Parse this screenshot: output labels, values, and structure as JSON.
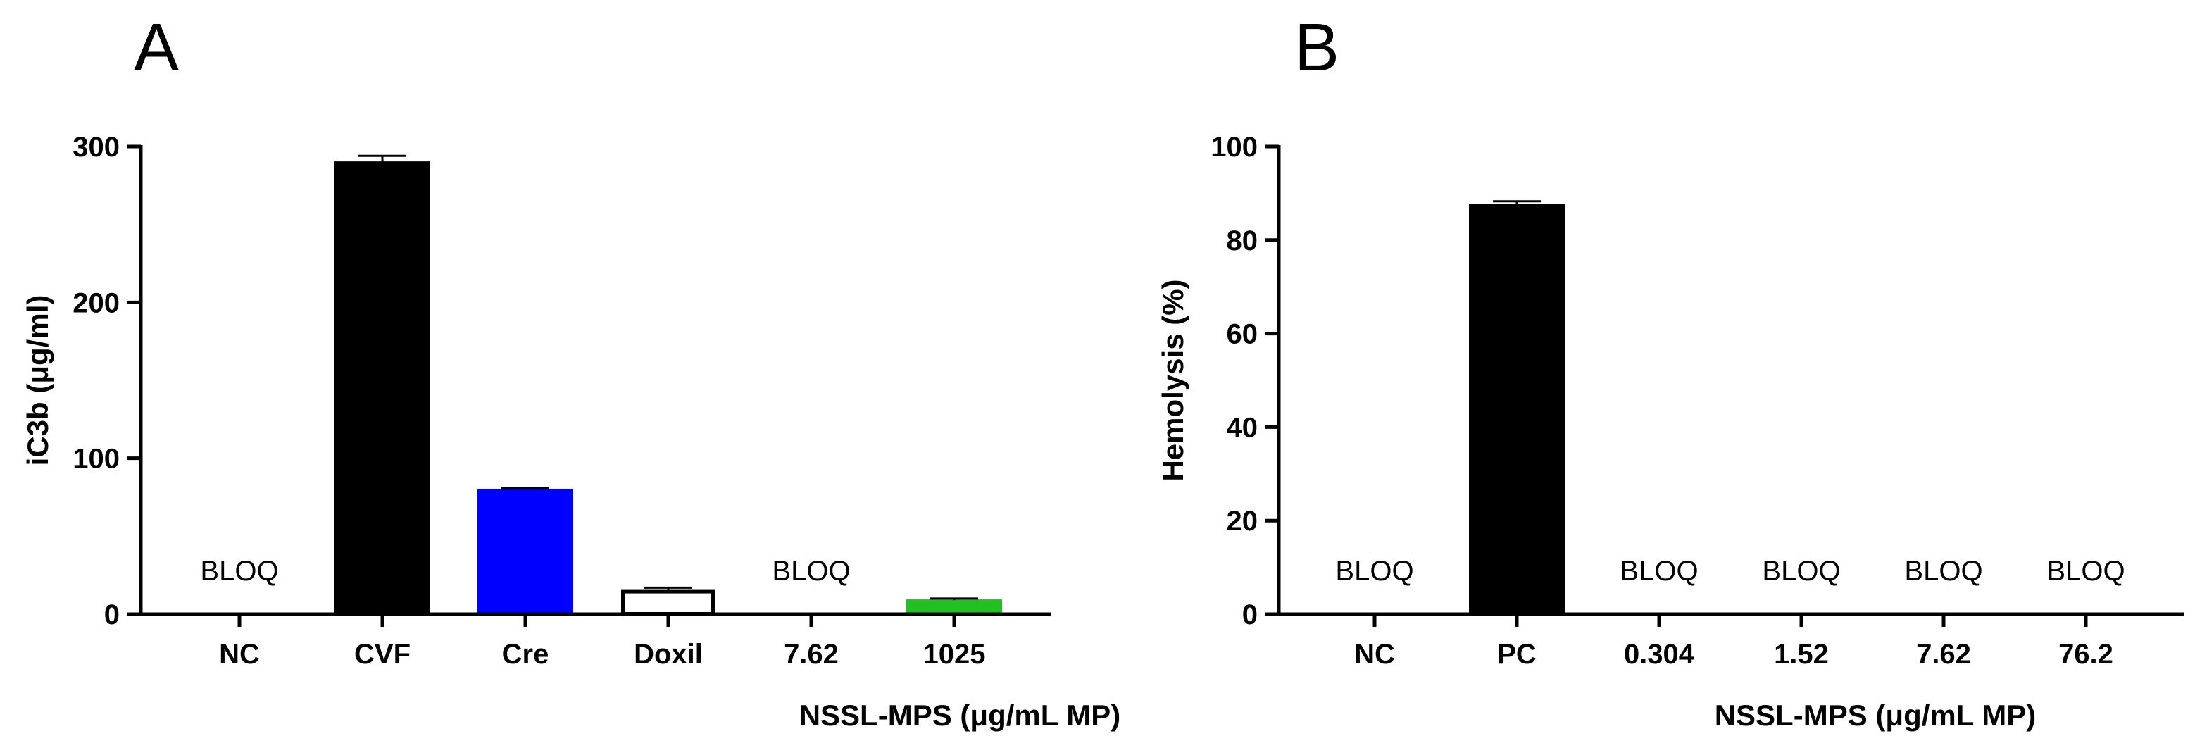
{
  "chart_data": [
    {
      "type": "bar",
      "panel_label": "A",
      "categories": [
        "NC",
        "CVF",
        "Cre",
        "Doxil",
        "7.62",
        "1025"
      ],
      "values": [
        0,
        290,
        80,
        16,
        0,
        9
      ],
      "errors": [
        0,
        4,
        1,
        1,
        0,
        1
      ],
      "bar_colors": [
        "#000000",
        "#000000",
        "#0000ff",
        "#ffffff",
        "#000000",
        "#22c022"
      ],
      "annotations": [
        "BLOQ",
        "",
        "",
        "",
        "BLOQ",
        ""
      ],
      "ylabel": "iC3b (μg/ml)",
      "xlabel": "NSSL-MPS (μg/mL MP)",
      "ylim": [
        0,
        300
      ],
      "yticks": [
        0,
        100,
        200,
        300
      ]
    },
    {
      "type": "bar",
      "panel_label": "B",
      "categories": [
        "NC",
        "PC",
        "0.304",
        "1.52",
        "7.62",
        "76.2"
      ],
      "values": [
        0,
        87.5,
        0,
        0,
        0,
        0
      ],
      "errors": [
        0,
        0.8,
        0,
        0,
        0,
        0
      ],
      "bar_colors": [
        "#000000",
        "#000000",
        "#000000",
        "#000000",
        "#000000",
        "#000000"
      ],
      "annotations": [
        "BLOQ",
        "",
        "BLOQ",
        "BLOQ",
        "BLOQ",
        "BLOQ"
      ],
      "ylabel": "Hemolysis (%)",
      "xlabel": "NSSL-MPS (μg/mL MP)",
      "ylim": [
        0,
        100
      ],
      "yticks": [
        0,
        20,
        40,
        60,
        80,
        100
      ]
    }
  ]
}
